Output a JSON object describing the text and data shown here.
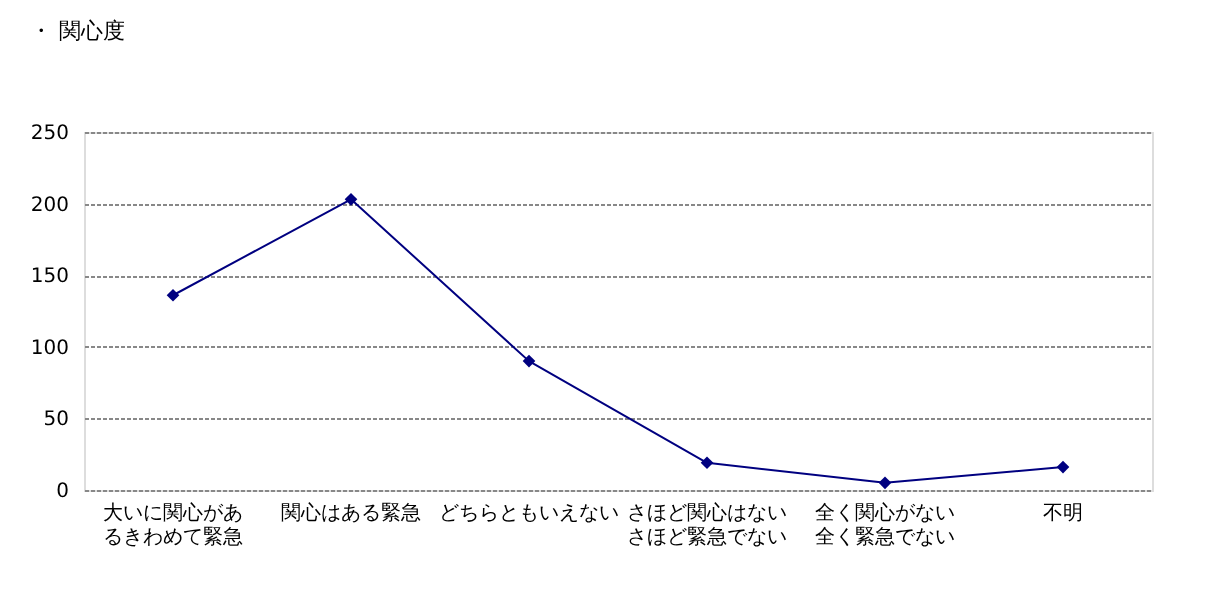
{
  "chart_data": {
    "type": "line",
    "title": "・ 関心度",
    "categories": [
      "大いに関心があるきわめて緊急",
      "関心はある緊急",
      "どちらともいえない",
      "さほど関心はないさほど緊急でない",
      "全く関心がない全く緊急でない",
      "不明"
    ],
    "series": [
      {
        "color": "#000080",
        "values": [
          136,
          203,
          90,
          19,
          5,
          16
        ]
      }
    ],
    "ylim": [
      0,
      250
    ],
    "yticks": [
      0,
      50,
      100,
      150,
      200,
      250
    ],
    "grid": "y",
    "marker": "diamond",
    "line_style": "solid"
  }
}
